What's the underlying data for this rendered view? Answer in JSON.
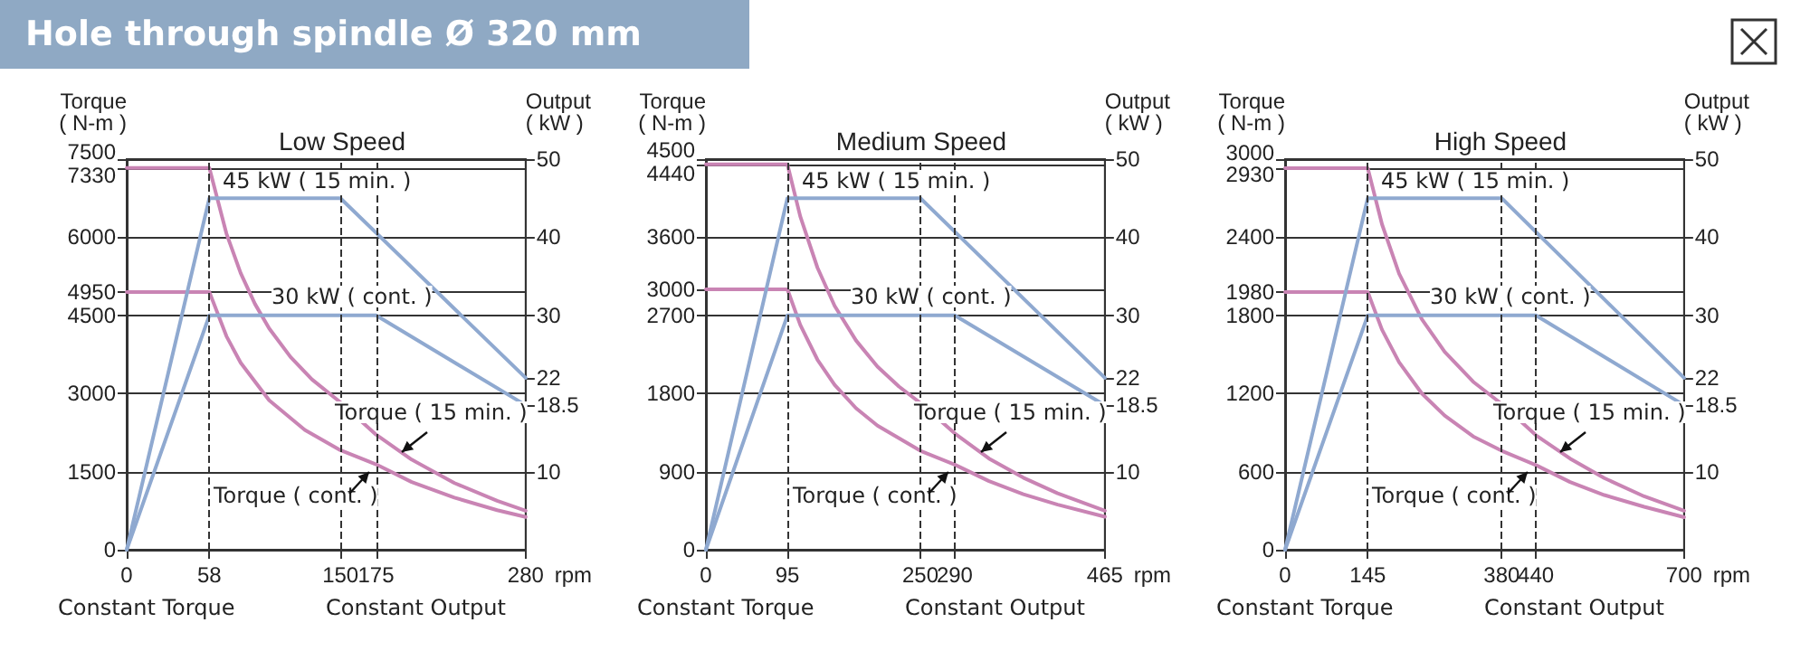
{
  "chart_data": [
    {
      "type": "line",
      "title": "Low Speed",
      "ylabel": "Torque\n( N-m )",
      "y2label": "Output\n( kW )",
      "xlabel": "rpm",
      "xlim": [
        0,
        280
      ],
      "xticks": [
        0,
        58,
        150,
        175,
        280
      ],
      "ylim": [
        0,
        7500
      ],
      "yticks": [
        0,
        1500,
        3000,
        4500,
        4950,
        6000,
        7330,
        7500
      ],
      "y2lim": [
        0,
        50
      ],
      "y2ticks": [
        10,
        18.5,
        22,
        30,
        40,
        50
      ],
      "grid": "y",
      "marker": "none",
      "series": [
        {
          "color": "#c984b4",
          "x": [
            0,
            58,
            70,
            80,
            90,
            100,
            115,
            130,
            150,
            175,
            200,
            230,
            260,
            280
          ],
          "values": [
            7330,
            7330,
            6070,
            5310,
            4720,
            4250,
            3700,
            3270,
            2830,
            2210,
            1730,
            1280,
            940,
            750
          ]
        },
        {
          "color": "#c984b4",
          "x": [
            0,
            58,
            70,
            80,
            100,
            125,
            150,
            175,
            200,
            230,
            260,
            280
          ],
          "values": [
            4950,
            4950,
            4100,
            3590,
            2870,
            2300,
            1910,
            1640,
            1300,
            1000,
            760,
            630
          ]
        },
        {
          "color": "#8fa9d0",
          "axis": "y2",
          "x": [
            0,
            58,
            150,
            280
          ],
          "values": [
            0,
            45,
            45,
            22
          ]
        },
        {
          "color": "#8fa9d0",
          "axis": "y2",
          "x": [
            0,
            58,
            175,
            280
          ],
          "values": [
            0,
            30,
            30,
            18.5
          ]
        }
      ],
      "ref_lines": [
        {
          "axis": "x",
          "value": 58,
          "line_style": "dashed"
        },
        {
          "axis": "x",
          "value": 150,
          "line_style": "dashed"
        },
        {
          "axis": "x",
          "value": 175,
          "line_style": "dashed"
        }
      ],
      "annotations": [
        "45 kW ( 15 min. )",
        "30 kW ( cont. )",
        "Torque ( 15 min. )",
        "Torque ( cont. )",
        "Constant Torque",
        "Constant Output",
        "Hole through spindle Ø 320 mm"
      ]
    },
    {
      "type": "line",
      "title": "Medium Speed",
      "ylabel": "Torque\n( N-m )",
      "y2label": "Output\n( kW )",
      "xlabel": "rpm",
      "xlim": [
        0,
        465
      ],
      "xticks": [
        0,
        95,
        250,
        290,
        465
      ],
      "ylim": [
        0,
        4500
      ],
      "yticks": [
        0,
        900,
        1800,
        2700,
        3000,
        3600,
        4440,
        4500
      ],
      "y2lim": [
        0,
        50
      ],
      "y2ticks": [
        10,
        18.5,
        22,
        30,
        40,
        50
      ],
      "grid": "y",
      "marker": "none",
      "series": [
        {
          "color": "#c984b4",
          "x": [
            0,
            95,
            110,
            130,
            150,
            175,
            200,
            225,
            250,
            290,
            330,
            370,
            410,
            465
          ],
          "values": [
            4440,
            4440,
            3840,
            3250,
            2810,
            2410,
            2110,
            1880,
            1690,
            1340,
            1050,
            830,
            650,
            450
          ]
        },
        {
          "color": "#c984b4",
          "x": [
            0,
            95,
            110,
            130,
            150,
            175,
            200,
            250,
            290,
            330,
            370,
            410,
            465
          ],
          "values": [
            3000,
            3000,
            2590,
            2190,
            1900,
            1630,
            1430,
            1140,
            980,
            790,
            640,
            520,
            380
          ]
        },
        {
          "color": "#8fa9d0",
          "axis": "y2",
          "x": [
            0,
            95,
            250,
            465
          ],
          "values": [
            0,
            45,
            45,
            22
          ]
        },
        {
          "color": "#8fa9d0",
          "axis": "y2",
          "x": [
            0,
            95,
            290,
            465
          ],
          "values": [
            0,
            30,
            30,
            18.5
          ]
        }
      ],
      "ref_lines": [
        {
          "axis": "x",
          "value": 95,
          "line_style": "dashed"
        },
        {
          "axis": "x",
          "value": 250,
          "line_style": "dashed"
        },
        {
          "axis": "x",
          "value": 290,
          "line_style": "dashed"
        }
      ],
      "annotations": [
        "45 kW ( 15 min. )",
        "30 kW ( cont. )",
        "Torque ( 15 min. )",
        "Torque ( cont. )",
        "Constant Torque",
        "Constant Output"
      ]
    },
    {
      "type": "line",
      "title": "High Speed",
      "ylabel": "Torque\n( N-m )",
      "y2label": "Output\n( kW )",
      "xlabel": "rpm",
      "xlim": [
        0,
        700
      ],
      "xticks": [
        0,
        145,
        380,
        440,
        700
      ],
      "ylim": [
        0,
        3000
      ],
      "yticks": [
        0,
        600,
        1200,
        1800,
        1980,
        2400,
        2930,
        3000
      ],
      "y2lim": [
        0,
        50
      ],
      "y2ticks": [
        10,
        18.5,
        22,
        30,
        40,
        50
      ],
      "grid": "y",
      "marker": "none",
      "series": [
        {
          "color": "#c984b4",
          "x": [
            0,
            145,
            170,
            200,
            240,
            280,
            330,
            380,
            440,
            500,
            560,
            630,
            700
          ],
          "values": [
            2930,
            2930,
            2500,
            2120,
            1770,
            1520,
            1290,
            1120,
            880,
            700,
            550,
            410,
            300
          ]
        },
        {
          "color": "#c984b4",
          "x": [
            0,
            145,
            170,
            200,
            240,
            280,
            330,
            380,
            440,
            500,
            560,
            630,
            700
          ],
          "values": [
            1980,
            1980,
            1690,
            1440,
            1200,
            1030,
            870,
            760,
            650,
            520,
            420,
            330,
            250
          ]
        },
        {
          "color": "#8fa9d0",
          "axis": "y2",
          "x": [
            0,
            145,
            380,
            700
          ],
          "values": [
            0,
            45,
            45,
            22
          ]
        },
        {
          "color": "#8fa9d0",
          "axis": "y2",
          "x": [
            0,
            145,
            440,
            700
          ],
          "values": [
            0,
            30,
            30,
            18.5
          ]
        }
      ],
      "ref_lines": [
        {
          "axis": "x",
          "value": 145,
          "line_style": "dashed"
        },
        {
          "axis": "x",
          "value": 380,
          "line_style": "dashed"
        },
        {
          "axis": "x",
          "value": 440,
          "line_style": "dashed"
        }
      ],
      "annotations": [
        "45 kW ( 15 min. )",
        "30 kW ( cont. )",
        "Torque ( 15 min. )",
        "Torque ( cont. )",
        "Constant Torque",
        "Constant Output"
      ]
    }
  ]
}
